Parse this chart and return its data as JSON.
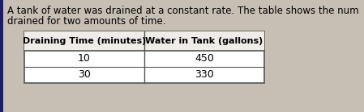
{
  "description_line1": "A tank of water was drained at a constant rate. The table shows the num",
  "description_line2": "drained for two amounts of time.",
  "col1_header": "Draining Time (minutes)",
  "col2_header": "Water in Tank (gallons)",
  "rows": [
    [
      "10",
      "450"
    ],
    [
      "30",
      "330"
    ]
  ],
  "bg_color": "#c8bfb4",
  "table_bg": "#ffffff",
  "header_bg": "#f0ece8",
  "text_color": "#000000",
  "border_color": "#555555",
  "left_bar_color": "#1a1a6e",
  "desc_fontsize": 8.5,
  "header_fontsize": 8.0,
  "cell_fontsize": 9.0
}
